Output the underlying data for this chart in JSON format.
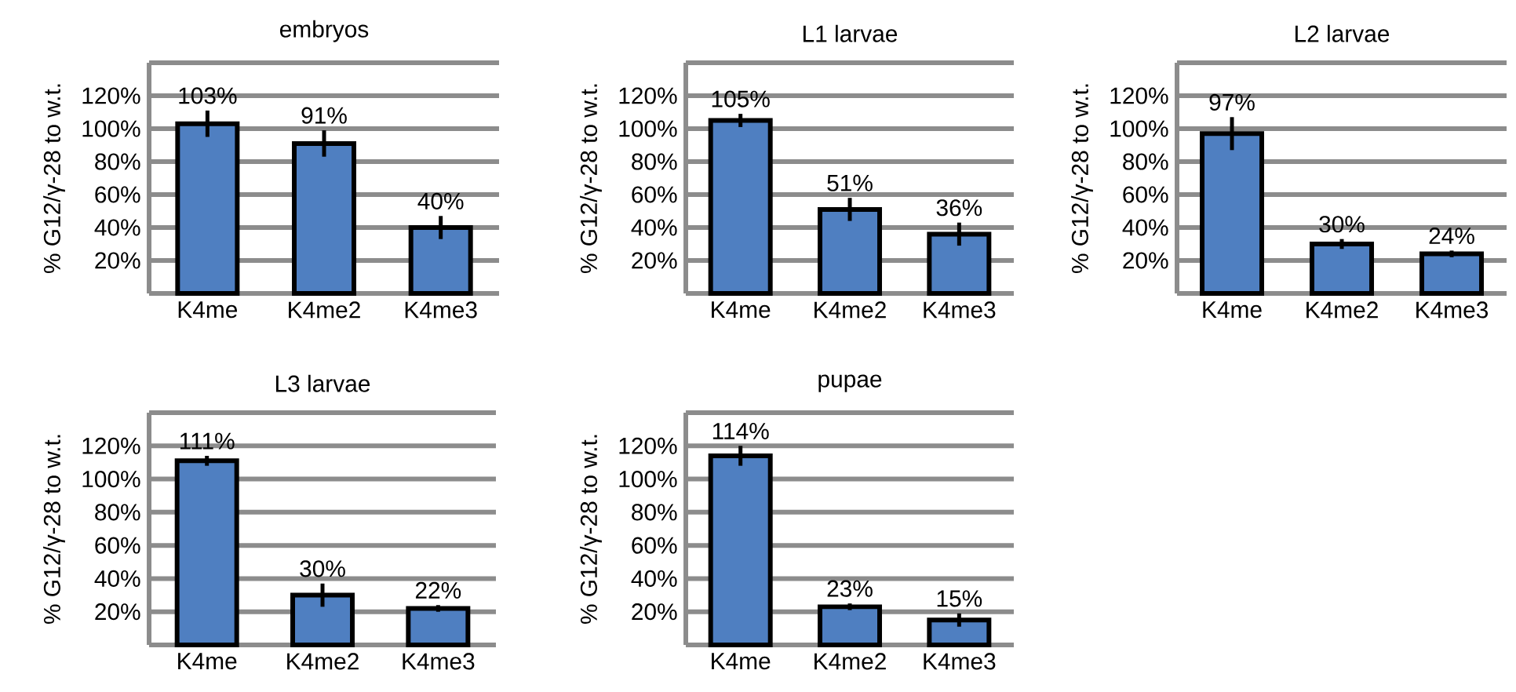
{
  "chart_data": [
    {
      "type": "bar",
      "title": "embryos",
      "ylabel": "% G12/γ-28 to w.t.",
      "categories": [
        "K4me",
        "K4me2",
        "K4me3"
      ],
      "values": [
        103,
        91,
        40
      ],
      "errors": [
        8,
        8,
        7
      ],
      "value_labels": [
        "103%",
        "91%",
        "40%"
      ],
      "color": "#4f7fc1",
      "ylim": [
        0,
        140
      ],
      "yticks": [
        {
          "value": 0,
          "label": null
        },
        {
          "value": 20,
          "label": "20%"
        },
        {
          "value": 40,
          "label": "40%"
        },
        {
          "value": 60,
          "label": "60%"
        },
        {
          "value": 80,
          "label": "80%"
        },
        {
          "value": 100,
          "label": "100%"
        },
        {
          "value": 120,
          "label": "120%"
        },
        {
          "value": 140,
          "label": null
        }
      ],
      "grid": "y"
    },
    {
      "type": "bar",
      "title": "L1 larvae",
      "ylabel": "% G12/γ-28 to w.t.",
      "categories": [
        "K4me",
        "K4me2",
        "K4me3"
      ],
      "values": [
        105,
        51,
        36
      ],
      "errors": [
        4,
        7,
        7
      ],
      "value_labels": [
        "105%",
        "51%",
        "36%"
      ],
      "color": "#4f7fc1",
      "ylim": [
        0,
        140
      ],
      "yticks": [
        {
          "value": 0,
          "label": null
        },
        {
          "value": 20,
          "label": "20%"
        },
        {
          "value": 40,
          "label": "40%"
        },
        {
          "value": 60,
          "label": "60%"
        },
        {
          "value": 80,
          "label": "80%"
        },
        {
          "value": 100,
          "label": "100%"
        },
        {
          "value": 120,
          "label": "120%"
        },
        {
          "value": 140,
          "label": null
        }
      ],
      "grid": "y"
    },
    {
      "type": "bar",
      "title": "L2 larvae",
      "ylabel": "% G12/γ-28 to w.t.",
      "categories": [
        "K4me",
        "K4me2",
        "K4me3"
      ],
      "values": [
        97,
        30,
        24
      ],
      "errors": [
        10,
        3,
        2
      ],
      "value_labels": [
        "97%",
        "30%",
        "24%"
      ],
      "color": "#4f7fc1",
      "ylim": [
        0,
        140
      ],
      "yticks": [
        {
          "value": 0,
          "label": null
        },
        {
          "value": 20,
          "label": "20%"
        },
        {
          "value": 40,
          "label": "40%"
        },
        {
          "value": 60,
          "label": "60%"
        },
        {
          "value": 80,
          "label": "80%"
        },
        {
          "value": 100,
          "label": "100%"
        },
        {
          "value": 120,
          "label": "120%"
        },
        {
          "value": 140,
          "label": null
        }
      ],
      "grid": "y"
    },
    {
      "type": "bar",
      "title": "L3 larvae",
      "ylabel": "% G12/γ-28 to w.t.",
      "categories": [
        "K4me",
        "K4me2",
        "K4me3"
      ],
      "values": [
        111,
        30,
        22
      ],
      "errors": [
        3,
        7,
        2
      ],
      "value_labels": [
        "111%",
        "30%",
        "22%"
      ],
      "color": "#4f7fc1",
      "ylim": [
        0,
        140
      ],
      "yticks": [
        {
          "value": 0,
          "label": null
        },
        {
          "value": 20,
          "label": "20%"
        },
        {
          "value": 40,
          "label": "40%"
        },
        {
          "value": 60,
          "label": "60%"
        },
        {
          "value": 80,
          "label": "80%"
        },
        {
          "value": 100,
          "label": "100%"
        },
        {
          "value": 120,
          "label": "120%"
        },
        {
          "value": 140,
          "label": null
        }
      ],
      "grid": "y"
    },
    {
      "type": "bar",
      "title": "pupae",
      "ylabel": "% G12/γ-28 to w.t.",
      "categories": [
        "K4me",
        "K4me2",
        "K4me3"
      ],
      "values": [
        114,
        23,
        15
      ],
      "errors": [
        6,
        2,
        4
      ],
      "value_labels": [
        "114%",
        "23%",
        "15%"
      ],
      "color": "#4f7fc1",
      "ylim": [
        0,
        140
      ],
      "yticks": [
        {
          "value": 0,
          "label": null
        },
        {
          "value": 20,
          "label": "20%"
        },
        {
          "value": 40,
          "label": "40%"
        },
        {
          "value": 60,
          "label": "60%"
        },
        {
          "value": 80,
          "label": "80%"
        },
        {
          "value": 100,
          "label": "100%"
        },
        {
          "value": 120,
          "label": "120%"
        },
        {
          "value": 140,
          "label": null
        }
      ],
      "grid": "y"
    }
  ]
}
